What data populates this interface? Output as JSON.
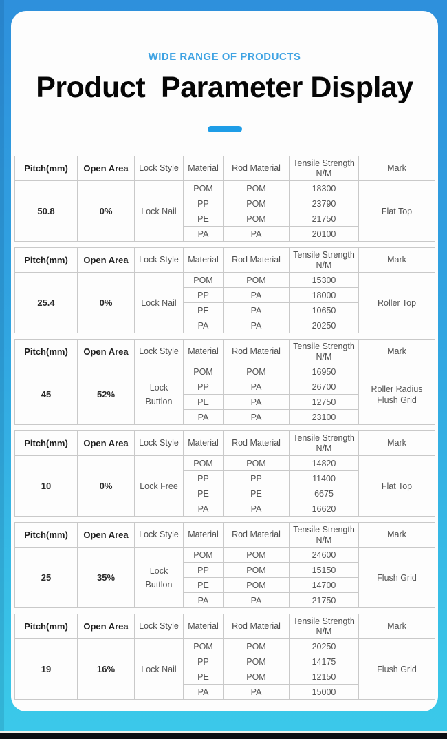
{
  "page": {
    "subtitle": "WIDE RANGE OF PRODUCTS",
    "title": "Product  Parameter Display"
  },
  "colors": {
    "bg_top_blue": "#2e90dc",
    "bg_bottom_cyan": "#3bc9ea",
    "accent_dash_blue": "#1e9de7",
    "subtitle_blue": "#3fa3e3",
    "card_white": "#fdfdfd",
    "table_border_gray": "#c9c9c9",
    "header_text_gray": "#4e4e4e",
    "bold_text_dark": "#1d1d1d",
    "bottom_bar_black": "#0c0e12"
  },
  "headers": [
    {
      "label": "Pitch(mm)",
      "bold": true
    },
    {
      "label": "Open Area",
      "bold": true
    },
    {
      "label": "Lock Style",
      "bold": false
    },
    {
      "label": "Material",
      "bold": false
    },
    {
      "label": "Rod Material",
      "bold": false
    },
    {
      "label": "Tensile Strength",
      "label2": "N/M",
      "bold": false
    },
    {
      "label": "Mark",
      "bold": false
    }
  ],
  "tables": [
    {
      "pitch": "50.8",
      "open_area": "0%",
      "lock_style": "Lock Nail",
      "mark": "Flat Top",
      "rows": [
        {
          "material": "POM",
          "rod": "POM",
          "tensile": "18300"
        },
        {
          "material": "PP",
          "rod": "POM",
          "tensile": "23790"
        },
        {
          "material": "PE",
          "rod": "POM",
          "tensile": "21750"
        },
        {
          "material": "PA",
          "rod": "PA",
          "tensile": "20100"
        }
      ]
    },
    {
      "pitch": "25.4",
      "open_area": "0%",
      "lock_style": "Lock Nail",
      "mark": "Roller Top",
      "rows": [
        {
          "material": "POM",
          "rod": "POM",
          "tensile": "15300"
        },
        {
          "material": "PP",
          "rod": "PA",
          "tensile": "18000"
        },
        {
          "material": "PE",
          "rod": "PA",
          "tensile": "10650"
        },
        {
          "material": "PA",
          "rod": "PA",
          "tensile": "20250"
        }
      ]
    },
    {
      "pitch": "45",
      "open_area": "52%",
      "lock_style": "Lock Buttlon",
      "mark": "Roller Radius Flush Grid",
      "rows": [
        {
          "material": "POM",
          "rod": "POM",
          "tensile": "16950"
        },
        {
          "material": "PP",
          "rod": "PA",
          "tensile": "26700"
        },
        {
          "material": "PE",
          "rod": "PA",
          "tensile": "12750"
        },
        {
          "material": "PA",
          "rod": "PA",
          "tensile": "23100"
        }
      ]
    },
    {
      "pitch": "10",
      "open_area": "0%",
      "lock_style": "Lock Free",
      "mark": "Flat Top",
      "rows": [
        {
          "material": "POM",
          "rod": "POM",
          "tensile": "14820"
        },
        {
          "material": "PP",
          "rod": "PP",
          "tensile": "11400"
        },
        {
          "material": "PE",
          "rod": "PE",
          "tensile": "6675"
        },
        {
          "material": "PA",
          "rod": "PA",
          "tensile": "16620"
        }
      ]
    },
    {
      "pitch": "25",
      "open_area": "35%",
      "lock_style": "Lock Buttlon",
      "mark": "Flush Grid",
      "rows": [
        {
          "material": "POM",
          "rod": "POM",
          "tensile": "24600"
        },
        {
          "material": "PP",
          "rod": "POM",
          "tensile": "15150"
        },
        {
          "material": "PE",
          "rod": "POM",
          "tensile": "14700"
        },
        {
          "material": "PA",
          "rod": "PA",
          "tensile": "21750"
        }
      ]
    },
    {
      "pitch": "19",
      "open_area": "16%",
      "lock_style": "Lock Nail",
      "mark": "Flush Grid",
      "rows": [
        {
          "material": "POM",
          "rod": "POM",
          "tensile": "20250"
        },
        {
          "material": "PP",
          "rod": "POM",
          "tensile": "14175"
        },
        {
          "material": "PE",
          "rod": "POM",
          "tensile": "12150"
        },
        {
          "material": "PA",
          "rod": "PA",
          "tensile": "15000"
        }
      ]
    }
  ]
}
